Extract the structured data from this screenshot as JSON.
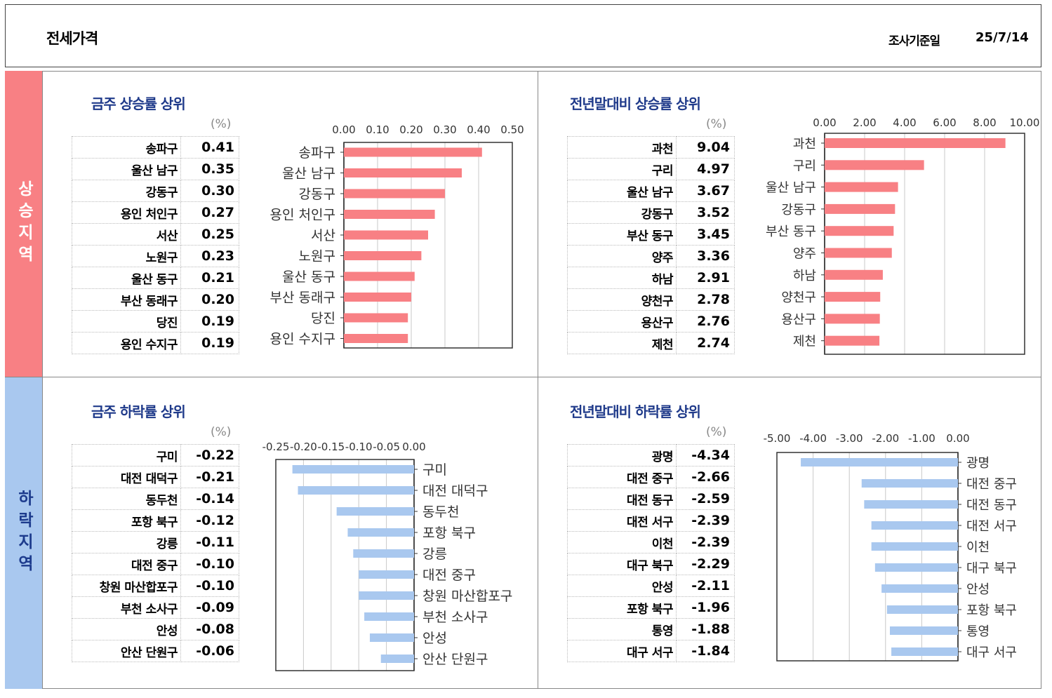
{
  "header": {
    "title": "전세가격",
    "date_label": "조사기준일",
    "date": "25/7/14"
  },
  "bands": {
    "up": "상승지역",
    "down": "하락지역"
  },
  "unit": "(%)",
  "colors": {
    "rise": "#f88084",
    "fall": "#a9c8ef",
    "title": "#1f3a8a"
  },
  "chart_data": [
    {
      "type": "bar",
      "title": "금주 상승률 상위",
      "categories": [
        "송파구",
        "울산 남구",
        "강동구",
        "용인 처인구",
        "서산",
        "노원구",
        "울산 동구",
        "부산 동래구",
        "당진",
        "용인 수지구"
      ],
      "values": [
        0.41,
        0.35,
        0.3,
        0.27,
        0.25,
        0.23,
        0.21,
        0.2,
        0.19,
        0.19
      ],
      "ticks": [
        "0.00",
        "0.10",
        "0.20",
        "0.30",
        "0.40",
        "0.50"
      ],
      "xlim": [
        0,
        0.5
      ],
      "grid": true
    },
    {
      "type": "bar",
      "title": "전년말대비 상승률 상위",
      "categories": [
        "과천",
        "구리",
        "울산 남구",
        "강동구",
        "부산 동구",
        "양주",
        "하남",
        "양천구",
        "용산구",
        "제천"
      ],
      "values": [
        9.04,
        4.97,
        3.67,
        3.52,
        3.45,
        3.36,
        2.91,
        2.78,
        2.76,
        2.74
      ],
      "ticks": [
        "0.00",
        "2.00",
        "4.00",
        "6.00",
        "8.00",
        "10.00"
      ],
      "xlim": [
        0,
        10
      ],
      "grid": true
    },
    {
      "type": "bar",
      "title": "금주 하락률 상위",
      "categories": [
        "구미",
        "대전 대덕구",
        "동두천",
        "포항 북구",
        "강릉",
        "대전 중구",
        "창원 마산합포구",
        "부천 소사구",
        "안성",
        "안산 단원구"
      ],
      "values": [
        -0.22,
        -0.21,
        -0.14,
        -0.12,
        -0.11,
        -0.1,
        -0.1,
        -0.09,
        -0.08,
        -0.06
      ],
      "ticks": [
        "-0.25",
        "-0.20",
        "-0.15",
        "-0.10",
        "-0.05",
        "0.00"
      ],
      "xlim": [
        -0.25,
        0
      ],
      "grid": true
    },
    {
      "type": "bar",
      "title": "전년말대비 하락률 상위",
      "categories": [
        "광명",
        "대전 중구",
        "대전 동구",
        "대전 서구",
        "이천",
        "대구 북구",
        "안성",
        "포항 북구",
        "통영",
        "대구 서구"
      ],
      "values": [
        -4.34,
        -2.66,
        -2.59,
        -2.39,
        -2.39,
        -2.29,
        -2.11,
        -1.96,
        -1.88,
        -1.84
      ],
      "ticks": [
        "-5.00",
        "-4.00",
        "-3.00",
        "-2.00",
        "-1.00",
        "0.00"
      ],
      "xlim": [
        -5,
        0
      ],
      "grid": true
    }
  ],
  "tables": [
    {
      "names": [
        "송파구",
        "울산 남구",
        "강동구",
        "용인 처인구",
        "서산",
        "노원구",
        "울산 동구",
        "부산 동래구",
        "당진",
        "용인 수지구"
      ],
      "values": [
        "0.41",
        "0.35",
        "0.30",
        "0.27",
        "0.25",
        "0.23",
        "0.21",
        "0.20",
        "0.19",
        "0.19"
      ]
    },
    {
      "names": [
        "과천",
        "구리",
        "울산 남구",
        "강동구",
        "부산 동구",
        "양주",
        "하남",
        "양천구",
        "용산구",
        "제천"
      ],
      "values": [
        "9.04",
        "4.97",
        "3.67",
        "3.52",
        "3.45",
        "3.36",
        "2.91",
        "2.78",
        "2.76",
        "2.74"
      ]
    },
    {
      "names": [
        "구미",
        "대전 대덕구",
        "동두천",
        "포항 북구",
        "강릉",
        "대전 중구",
        "창원 마산합포구",
        "부천 소사구",
        "안성",
        "안산 단원구"
      ],
      "values": [
        "-0.22",
        "-0.21",
        "-0.14",
        "-0.12",
        "-0.11",
        "-0.10",
        "-0.10",
        "-0.09",
        "-0.08",
        "-0.06"
      ]
    },
    {
      "names": [
        "광명",
        "대전 중구",
        "대전 동구",
        "대전 서구",
        "이천",
        "대구 북구",
        "안성",
        "포항 북구",
        "통영",
        "대구 서구"
      ],
      "values": [
        "-4.34",
        "-2.66",
        "-2.59",
        "-2.39",
        "-2.39",
        "-2.29",
        "-2.11",
        "-1.96",
        "-1.88",
        "-1.84"
      ]
    }
  ]
}
